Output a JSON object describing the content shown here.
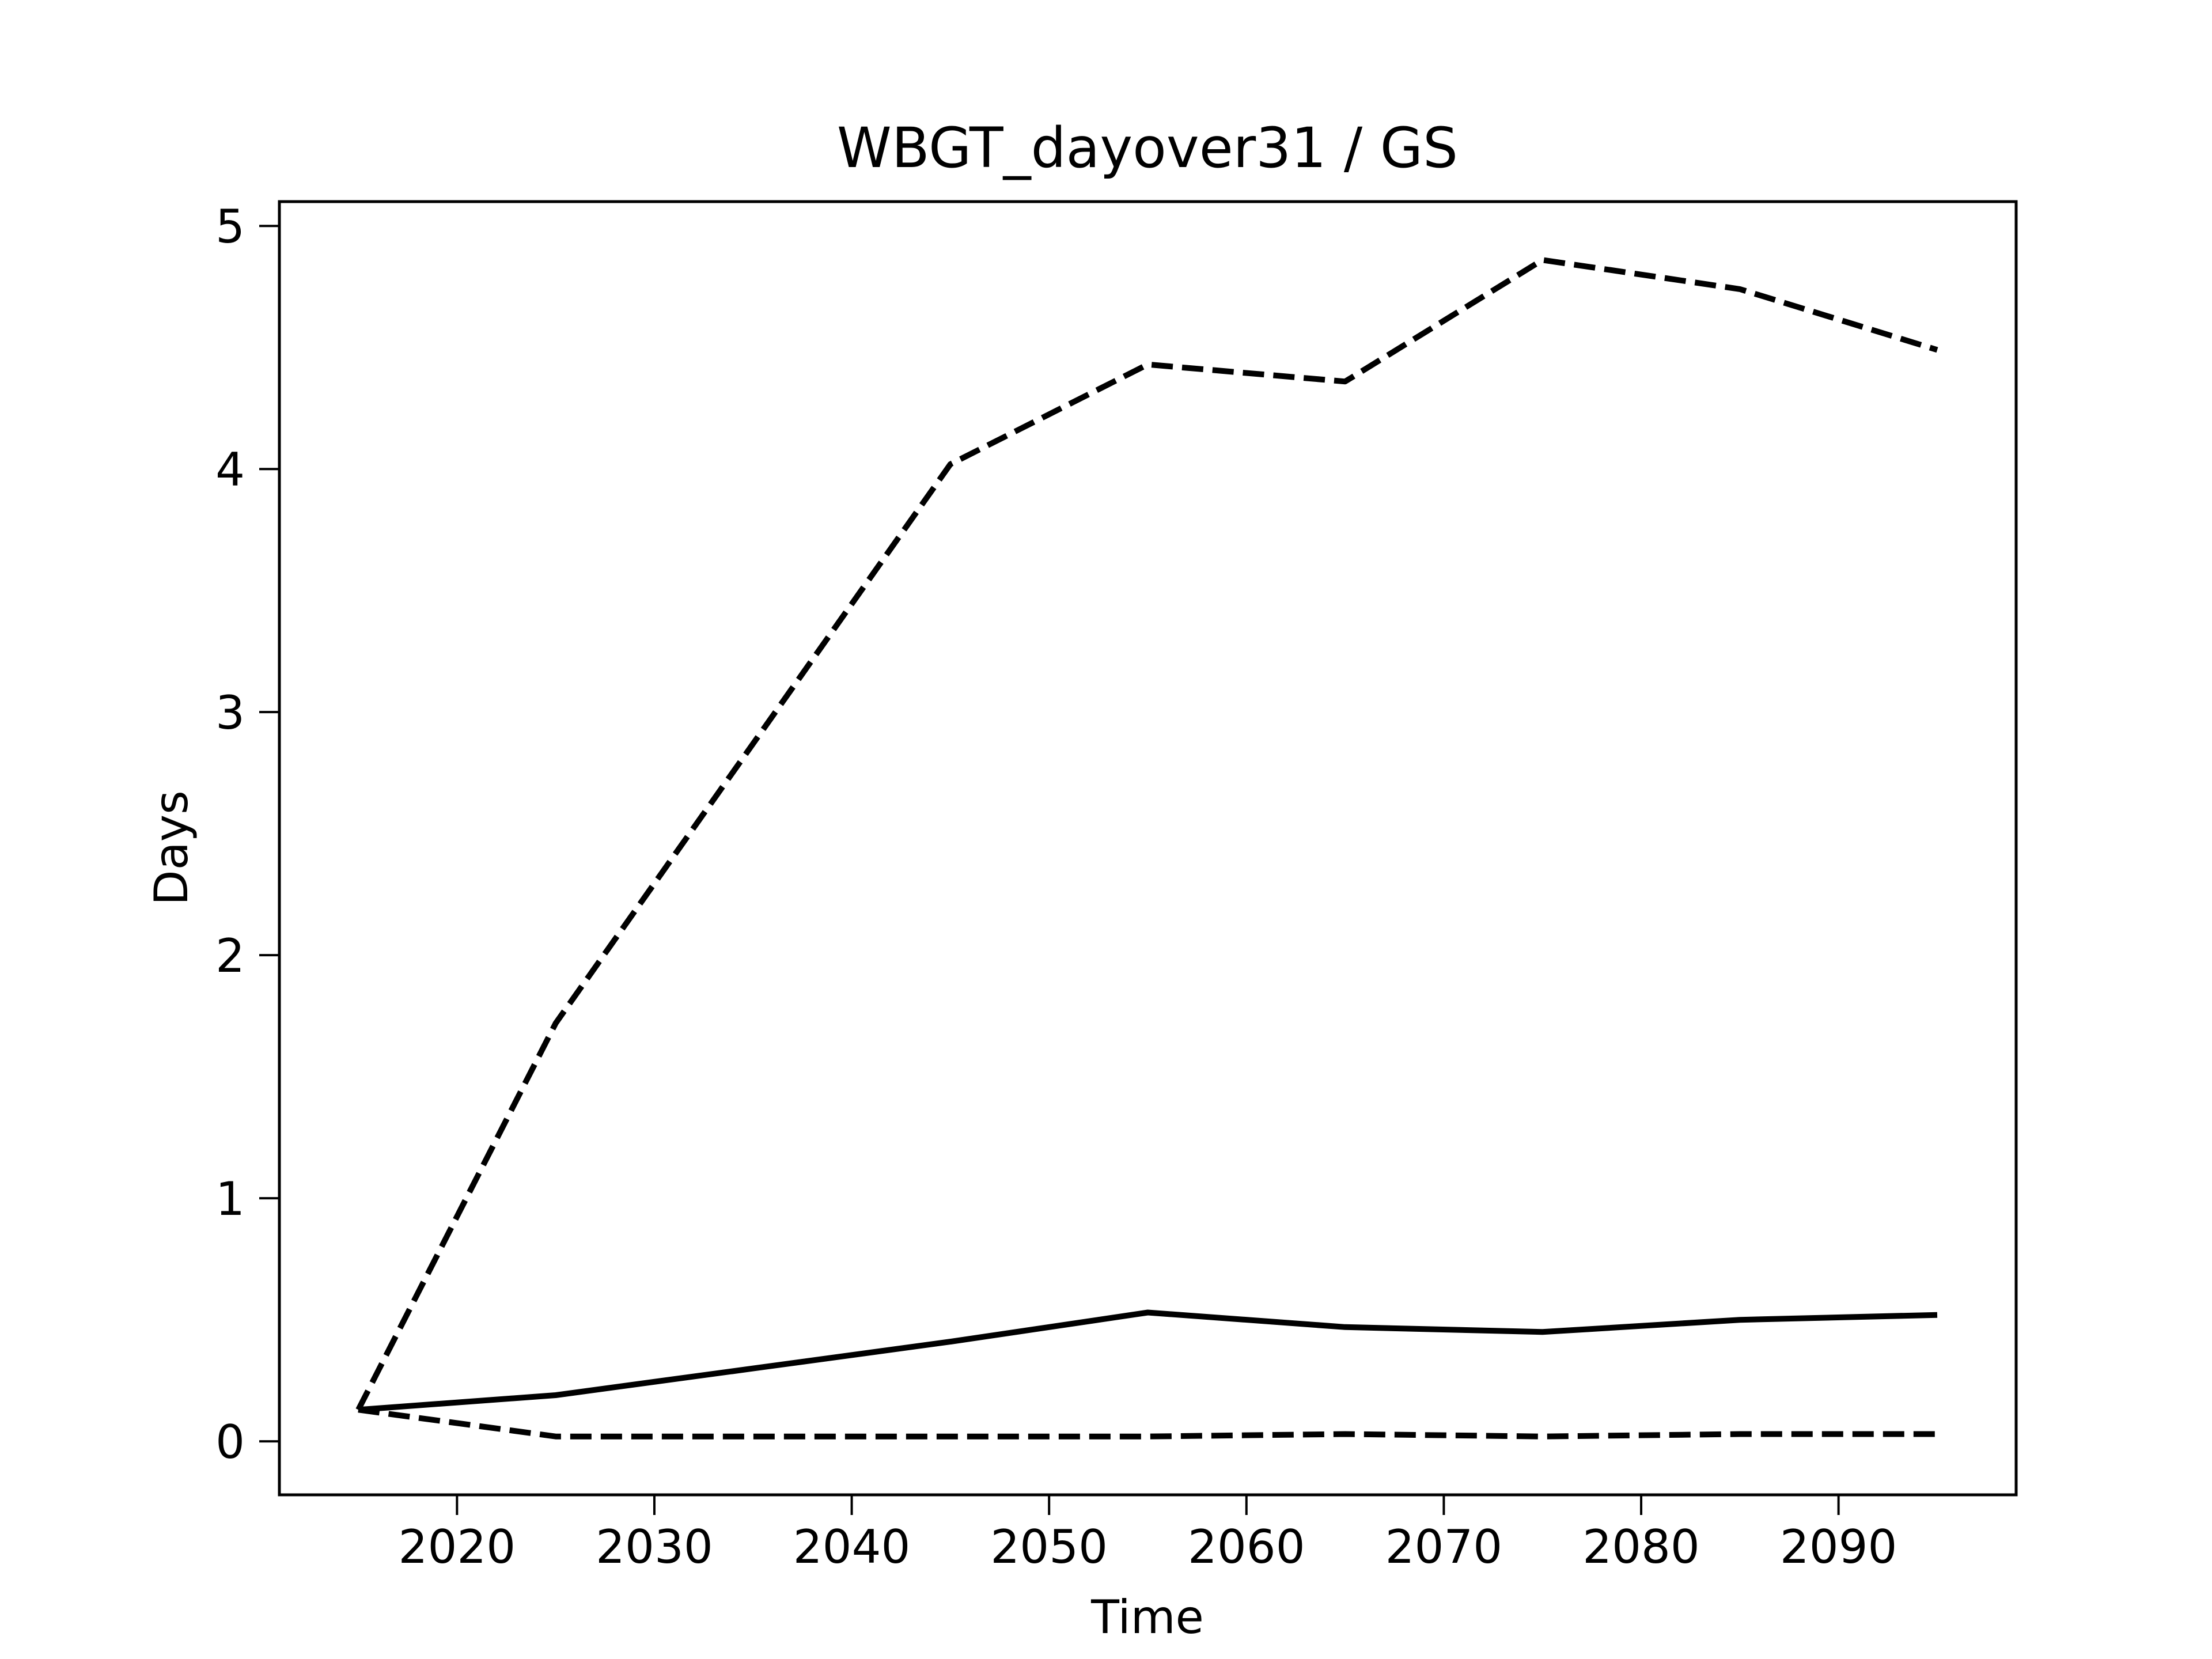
{
  "chart_data": {
    "type": "line",
    "title": "WBGT_dayover31 / GS",
    "xlabel": "Time",
    "ylabel": "Days",
    "xlim": [
      2011,
      2099
    ],
    "ylim": [
      -0.22,
      5.1
    ],
    "xticks": [
      2020,
      2030,
      2040,
      2050,
      2060,
      2070,
      2080,
      2090
    ],
    "yticks": [
      0,
      1,
      2,
      3,
      4,
      5
    ],
    "grid": false,
    "legend": "none",
    "x": [
      2015,
      2025,
      2035,
      2045,
      2055,
      2065,
      2075,
      2085,
      2095
    ],
    "series": [
      {
        "style": "dashed",
        "color": "#000000",
        "values": [
          0.13,
          1.72,
          2.87,
          4.02,
          4.43,
          4.36,
          4.86,
          4.74,
          4.49
        ]
      },
      {
        "style": "solid",
        "color": "#000000",
        "values": [
          0.13,
          0.19,
          0.3,
          0.41,
          0.53,
          0.47,
          0.45,
          0.5,
          0.52
        ]
      },
      {
        "style": "dashed",
        "color": "#000000",
        "values": [
          0.13,
          0.02,
          0.02,
          0.02,
          0.02,
          0.03,
          0.02,
          0.03,
          0.03
        ]
      }
    ]
  }
}
